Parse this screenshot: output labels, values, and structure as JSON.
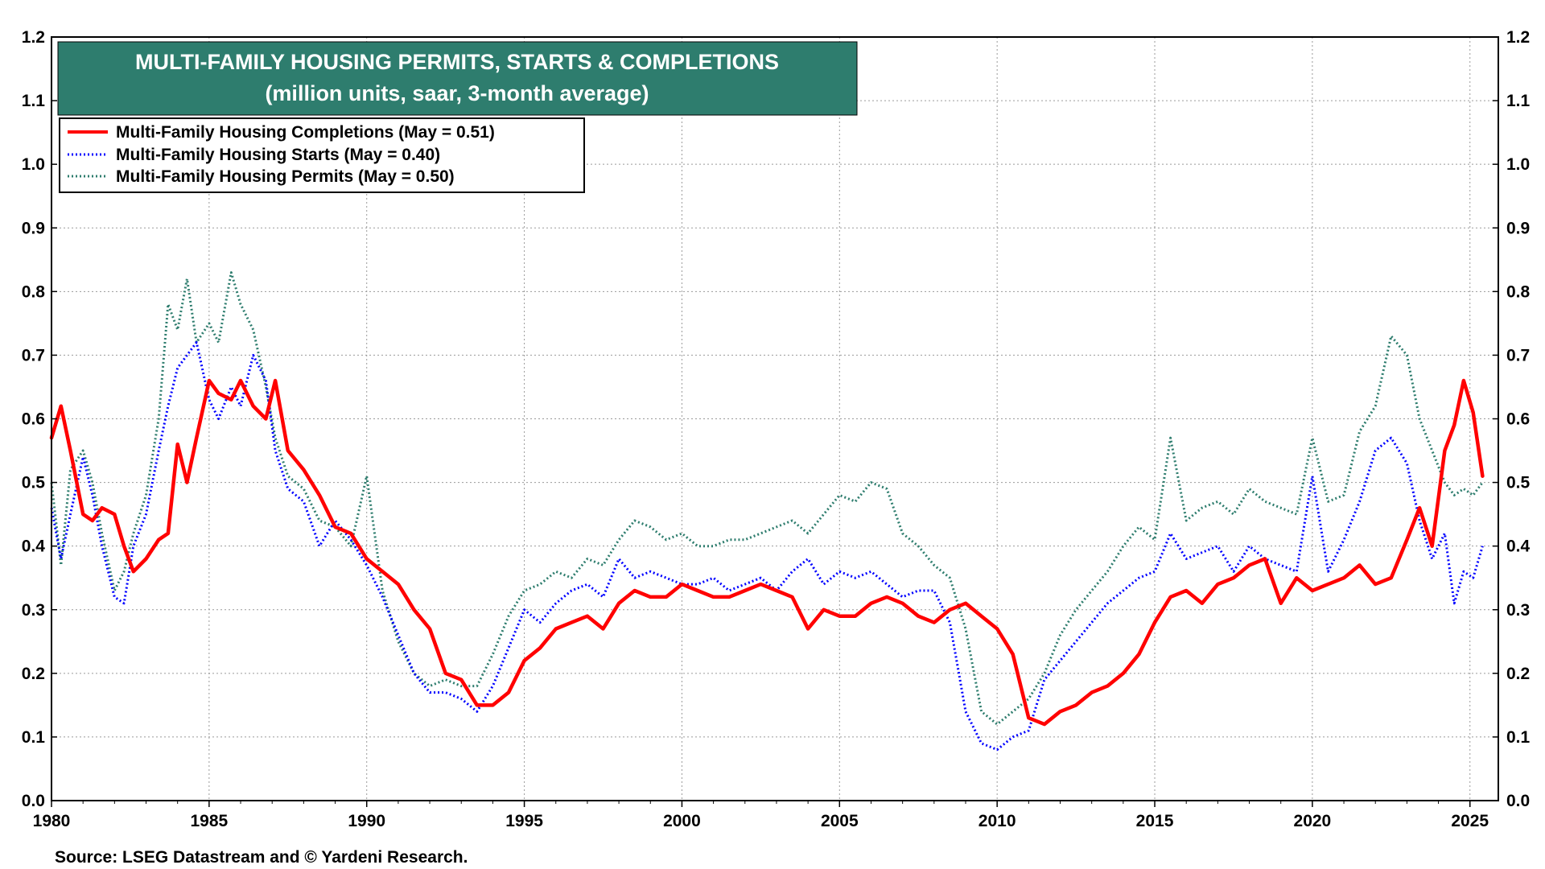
{
  "chart_data": {
    "type": "line",
    "title": "MULTI-FAMILY HOUSING PERMITS, STARTS & COMPLETIONS",
    "subtitle": "(million units, saar, 3-month average)",
    "source": "Source: LSEG Datastream and © Yardeni Research.",
    "xlim": [
      1980,
      2025.9
    ],
    "ylim": [
      0.0,
      1.2
    ],
    "x_ticks": [
      1980,
      1985,
      1990,
      1995,
      2000,
      2005,
      2010,
      2015,
      2020,
      2025
    ],
    "x_tick_labels": [
      "1980",
      "1985",
      "1990",
      "1995",
      "2000",
      "2005",
      "2010",
      "2015",
      "2020",
      "2025"
    ],
    "y_ticks": [
      0.0,
      0.1,
      0.2,
      0.3,
      0.4,
      0.5,
      0.6,
      0.7,
      0.8,
      0.9,
      1.0,
      1.1,
      1.2
    ],
    "y_tick_labels": [
      "0.0",
      "0.1",
      "0.2",
      "0.3",
      "0.4",
      "0.5",
      "0.6",
      "0.7",
      "0.8",
      "0.9",
      "1.0",
      "1.1",
      "1.2"
    ],
    "grid": true,
    "legend_position": "top-left",
    "colors": {
      "title_bg": "#2e7d6e",
      "completions": "#ff0000",
      "starts": "#0000ff",
      "permits": "#2e7d6e"
    },
    "series": [
      {
        "name": "Multi-Family Housing Completions (May = 0.51)",
        "style": "solid",
        "x": [
          1980.0,
          1980.3,
          1980.6,
          1981.0,
          1981.3,
          1981.6,
          1982.0,
          1982.3,
          1982.6,
          1983.0,
          1983.4,
          1983.7,
          1984.0,
          1984.3,
          1984.6,
          1985.0,
          1985.3,
          1985.7,
          1986.0,
          1986.4,
          1986.8,
          1987.1,
          1987.5,
          1988.0,
          1988.5,
          1989.0,
          1989.5,
          1990.0,
          1990.5,
          1991.0,
          1991.5,
          1992.0,
          1992.5,
          1993.0,
          1993.5,
          1994.0,
          1994.5,
          1995.0,
          1995.5,
          1996.0,
          1996.5,
          1997.0,
          1997.5,
          1998.0,
          1998.5,
          1999.0,
          1999.5,
          2000.0,
          2000.5,
          2001.0,
          2001.5,
          2002.0,
          2002.5,
          2003.0,
          2003.5,
          2004.0,
          2004.5,
          2005.0,
          2005.5,
          2006.0,
          2006.5,
          2007.0,
          2007.5,
          2008.0,
          2008.5,
          2009.0,
          2009.5,
          2010.0,
          2010.5,
          2011.0,
          2011.5,
          2012.0,
          2012.5,
          2013.0,
          2013.5,
          2014.0,
          2014.5,
          2015.0,
          2015.5,
          2016.0,
          2016.5,
          2017.0,
          2017.5,
          2018.0,
          2018.5,
          2019.0,
          2019.5,
          2020.0,
          2020.5,
          2021.0,
          2021.5,
          2022.0,
          2022.5,
          2023.0,
          2023.4,
          2023.8,
          2024.2,
          2024.5,
          2024.8,
          2025.1,
          2025.4
        ],
        "values": [
          0.57,
          0.62,
          0.55,
          0.45,
          0.44,
          0.46,
          0.45,
          0.4,
          0.36,
          0.38,
          0.41,
          0.42,
          0.56,
          0.5,
          0.57,
          0.66,
          0.64,
          0.63,
          0.66,
          0.62,
          0.6,
          0.66,
          0.55,
          0.52,
          0.48,
          0.43,
          0.42,
          0.38,
          0.36,
          0.34,
          0.3,
          0.27,
          0.2,
          0.19,
          0.15,
          0.15,
          0.17,
          0.22,
          0.24,
          0.27,
          0.28,
          0.29,
          0.27,
          0.31,
          0.33,
          0.32,
          0.32,
          0.34,
          0.33,
          0.32,
          0.32,
          0.33,
          0.34,
          0.33,
          0.32,
          0.27,
          0.3,
          0.29,
          0.29,
          0.31,
          0.32,
          0.31,
          0.29,
          0.28,
          0.3,
          0.31,
          0.29,
          0.27,
          0.23,
          0.13,
          0.12,
          0.14,
          0.15,
          0.17,
          0.18,
          0.2,
          0.23,
          0.28,
          0.32,
          0.33,
          0.31,
          0.34,
          0.35,
          0.37,
          0.38,
          0.31,
          0.35,
          0.33,
          0.34,
          0.35,
          0.37,
          0.34,
          0.35,
          0.41,
          0.46,
          0.4,
          0.55,
          0.59,
          0.66,
          0.61,
          0.51
        ]
      },
      {
        "name": "Multi-Family Housing Starts (May = 0.40)",
        "style": "dotted",
        "x": [
          1980.0,
          1980.3,
          1980.6,
          1981.0,
          1981.3,
          1981.6,
          1982.0,
          1982.3,
          1982.6,
          1983.0,
          1983.4,
          1983.7,
          1984.0,
          1984.3,
          1984.6,
          1985.0,
          1985.3,
          1985.7,
          1986.0,
          1986.4,
          1986.8,
          1987.1,
          1987.5,
          1988.0,
          1988.5,
          1989.0,
          1989.5,
          1990.0,
          1990.5,
          1991.0,
          1991.5,
          1992.0,
          1992.5,
          1993.0,
          1993.5,
          1994.0,
          1994.5,
          1995.0,
          1995.5,
          1996.0,
          1996.5,
          1997.0,
          1997.5,
          1998.0,
          1998.5,
          1999.0,
          1999.5,
          2000.0,
          2000.5,
          2001.0,
          2001.5,
          2002.0,
          2002.5,
          2003.0,
          2003.5,
          2004.0,
          2004.5,
          2005.0,
          2005.5,
          2006.0,
          2006.5,
          2007.0,
          2007.5,
          2008.0,
          2008.5,
          2009.0,
          2009.5,
          2010.0,
          2010.5,
          2011.0,
          2011.5,
          2012.0,
          2012.5,
          2013.0,
          2013.5,
          2014.0,
          2014.5,
          2015.0,
          2015.5,
          2016.0,
          2016.5,
          2017.0,
          2017.5,
          2018.0,
          2018.5,
          2019.0,
          2019.5,
          2020.0,
          2020.5,
          2021.0,
          2021.5,
          2022.0,
          2022.5,
          2023.0,
          2023.4,
          2023.8,
          2024.2,
          2024.5,
          2024.8,
          2025.1,
          2025.4
        ],
        "values": [
          0.46,
          0.38,
          0.45,
          0.54,
          0.48,
          0.4,
          0.32,
          0.31,
          0.4,
          0.45,
          0.55,
          0.62,
          0.68,
          0.7,
          0.72,
          0.63,
          0.6,
          0.65,
          0.62,
          0.7,
          0.66,
          0.55,
          0.49,
          0.47,
          0.4,
          0.44,
          0.41,
          0.37,
          0.32,
          0.26,
          0.2,
          0.17,
          0.17,
          0.16,
          0.14,
          0.18,
          0.24,
          0.3,
          0.28,
          0.31,
          0.33,
          0.34,
          0.32,
          0.38,
          0.35,
          0.36,
          0.35,
          0.34,
          0.34,
          0.35,
          0.33,
          0.34,
          0.35,
          0.33,
          0.36,
          0.38,
          0.34,
          0.36,
          0.35,
          0.36,
          0.34,
          0.32,
          0.33,
          0.33,
          0.28,
          0.14,
          0.09,
          0.08,
          0.1,
          0.11,
          0.19,
          0.22,
          0.25,
          0.28,
          0.31,
          0.33,
          0.35,
          0.36,
          0.42,
          0.38,
          0.39,
          0.4,
          0.36,
          0.4,
          0.38,
          0.37,
          0.36,
          0.51,
          0.36,
          0.41,
          0.47,
          0.55,
          0.57,
          0.53,
          0.44,
          0.38,
          0.42,
          0.31,
          0.36,
          0.35,
          0.4
        ]
      },
      {
        "name": "Multi-Family Housing Permits (May = 0.50)",
        "style": "dotted",
        "x": [
          1980.0,
          1980.3,
          1980.6,
          1981.0,
          1981.3,
          1981.6,
          1982.0,
          1982.3,
          1982.6,
          1983.0,
          1983.4,
          1983.7,
          1984.0,
          1984.3,
          1984.6,
          1985.0,
          1985.3,
          1985.7,
          1986.0,
          1986.4,
          1986.8,
          1987.1,
          1987.5,
          1988.0,
          1988.5,
          1989.0,
          1989.5,
          1990.0,
          1990.5,
          1991.0,
          1991.5,
          1992.0,
          1992.5,
          1993.0,
          1993.5,
          1994.0,
          1994.5,
          1995.0,
          1995.5,
          1996.0,
          1996.5,
          1997.0,
          1997.5,
          1998.0,
          1998.5,
          1999.0,
          1999.5,
          2000.0,
          2000.5,
          2001.0,
          2001.5,
          2002.0,
          2002.5,
          2003.0,
          2003.5,
          2004.0,
          2004.5,
          2005.0,
          2005.5,
          2006.0,
          2006.5,
          2007.0,
          2007.5,
          2008.0,
          2008.5,
          2009.0,
          2009.5,
          2010.0,
          2010.5,
          2011.0,
          2011.5,
          2012.0,
          2012.5,
          2013.0,
          2013.5,
          2014.0,
          2014.5,
          2015.0,
          2015.5,
          2016.0,
          2016.5,
          2017.0,
          2017.5,
          2018.0,
          2018.5,
          2019.0,
          2019.5,
          2020.0,
          2020.5,
          2021.0,
          2021.5,
          2022.0,
          2022.5,
          2023.0,
          2023.4,
          2023.8,
          2024.2,
          2024.5,
          2024.8,
          2025.1,
          2025.4
        ],
        "values": [
          0.5,
          0.37,
          0.52,
          0.55,
          0.5,
          0.42,
          0.33,
          0.36,
          0.42,
          0.48,
          0.6,
          0.78,
          0.74,
          0.82,
          0.72,
          0.75,
          0.72,
          0.83,
          0.78,
          0.74,
          0.65,
          0.57,
          0.51,
          0.49,
          0.44,
          0.43,
          0.4,
          0.51,
          0.33,
          0.25,
          0.2,
          0.18,
          0.19,
          0.18,
          0.18,
          0.23,
          0.29,
          0.33,
          0.34,
          0.36,
          0.35,
          0.38,
          0.37,
          0.41,
          0.44,
          0.43,
          0.41,
          0.42,
          0.4,
          0.4,
          0.41,
          0.41,
          0.42,
          0.43,
          0.44,
          0.42,
          0.45,
          0.48,
          0.47,
          0.5,
          0.49,
          0.42,
          0.4,
          0.37,
          0.35,
          0.27,
          0.14,
          0.12,
          0.14,
          0.16,
          0.2,
          0.26,
          0.3,
          0.33,
          0.36,
          0.4,
          0.43,
          0.41,
          0.57,
          0.44,
          0.46,
          0.47,
          0.45,
          0.49,
          0.47,
          0.46,
          0.45,
          0.57,
          0.47,
          0.48,
          0.58,
          0.62,
          0.73,
          0.7,
          0.6,
          0.55,
          0.5,
          0.48,
          0.49,
          0.48,
          0.5
        ]
      }
    ]
  }
}
